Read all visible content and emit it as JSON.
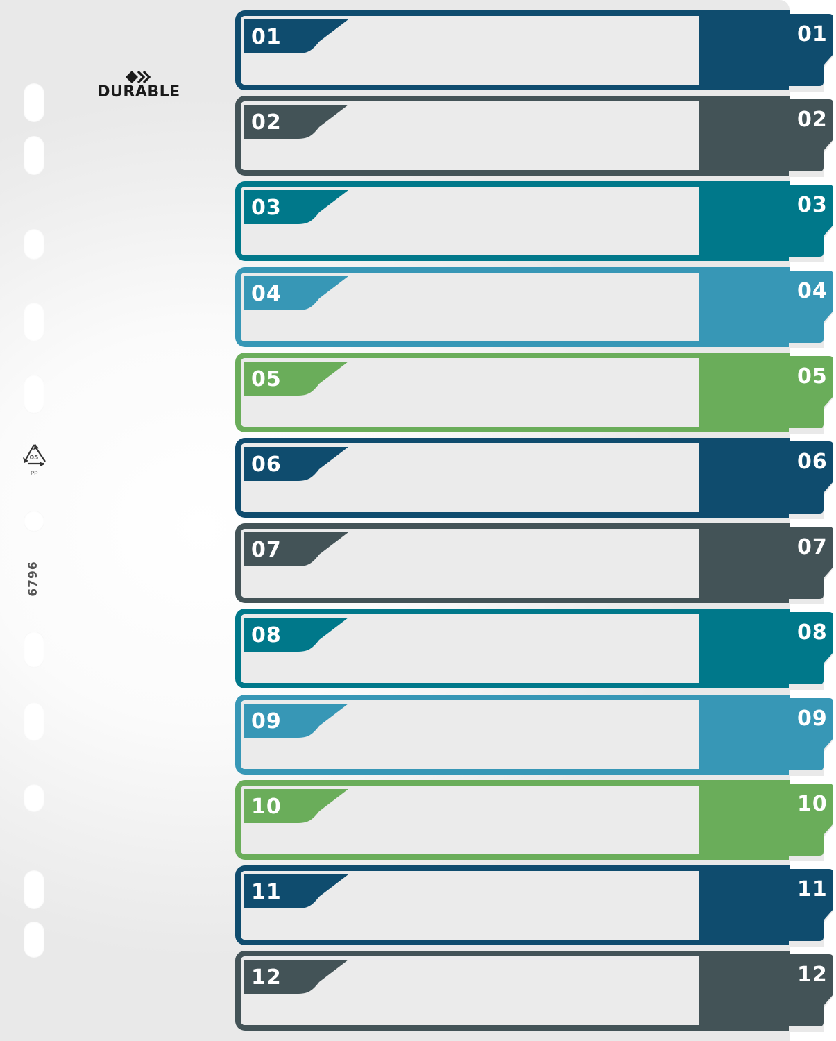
{
  "brand": {
    "name": "DURABLE"
  },
  "product_code": "6796",
  "recycling": {
    "number": "05",
    "material": "PP"
  },
  "dividers": [
    {
      "number": "01",
      "color": "#0f4c6e"
    },
    {
      "number": "02",
      "color": "#435357"
    },
    {
      "number": "03",
      "color": "#00788a"
    },
    {
      "number": "04",
      "color": "#3797b6"
    },
    {
      "number": "05",
      "color": "#6aad5a"
    },
    {
      "number": "06",
      "color": "#0f4c6e"
    },
    {
      "number": "07",
      "color": "#435357"
    },
    {
      "number": "08",
      "color": "#00788a"
    },
    {
      "number": "09",
      "color": "#3797b6"
    },
    {
      "number": "10",
      "color": "#6aad5a"
    },
    {
      "number": "11",
      "color": "#0f4c6e"
    },
    {
      "number": "12",
      "color": "#435357"
    }
  ]
}
